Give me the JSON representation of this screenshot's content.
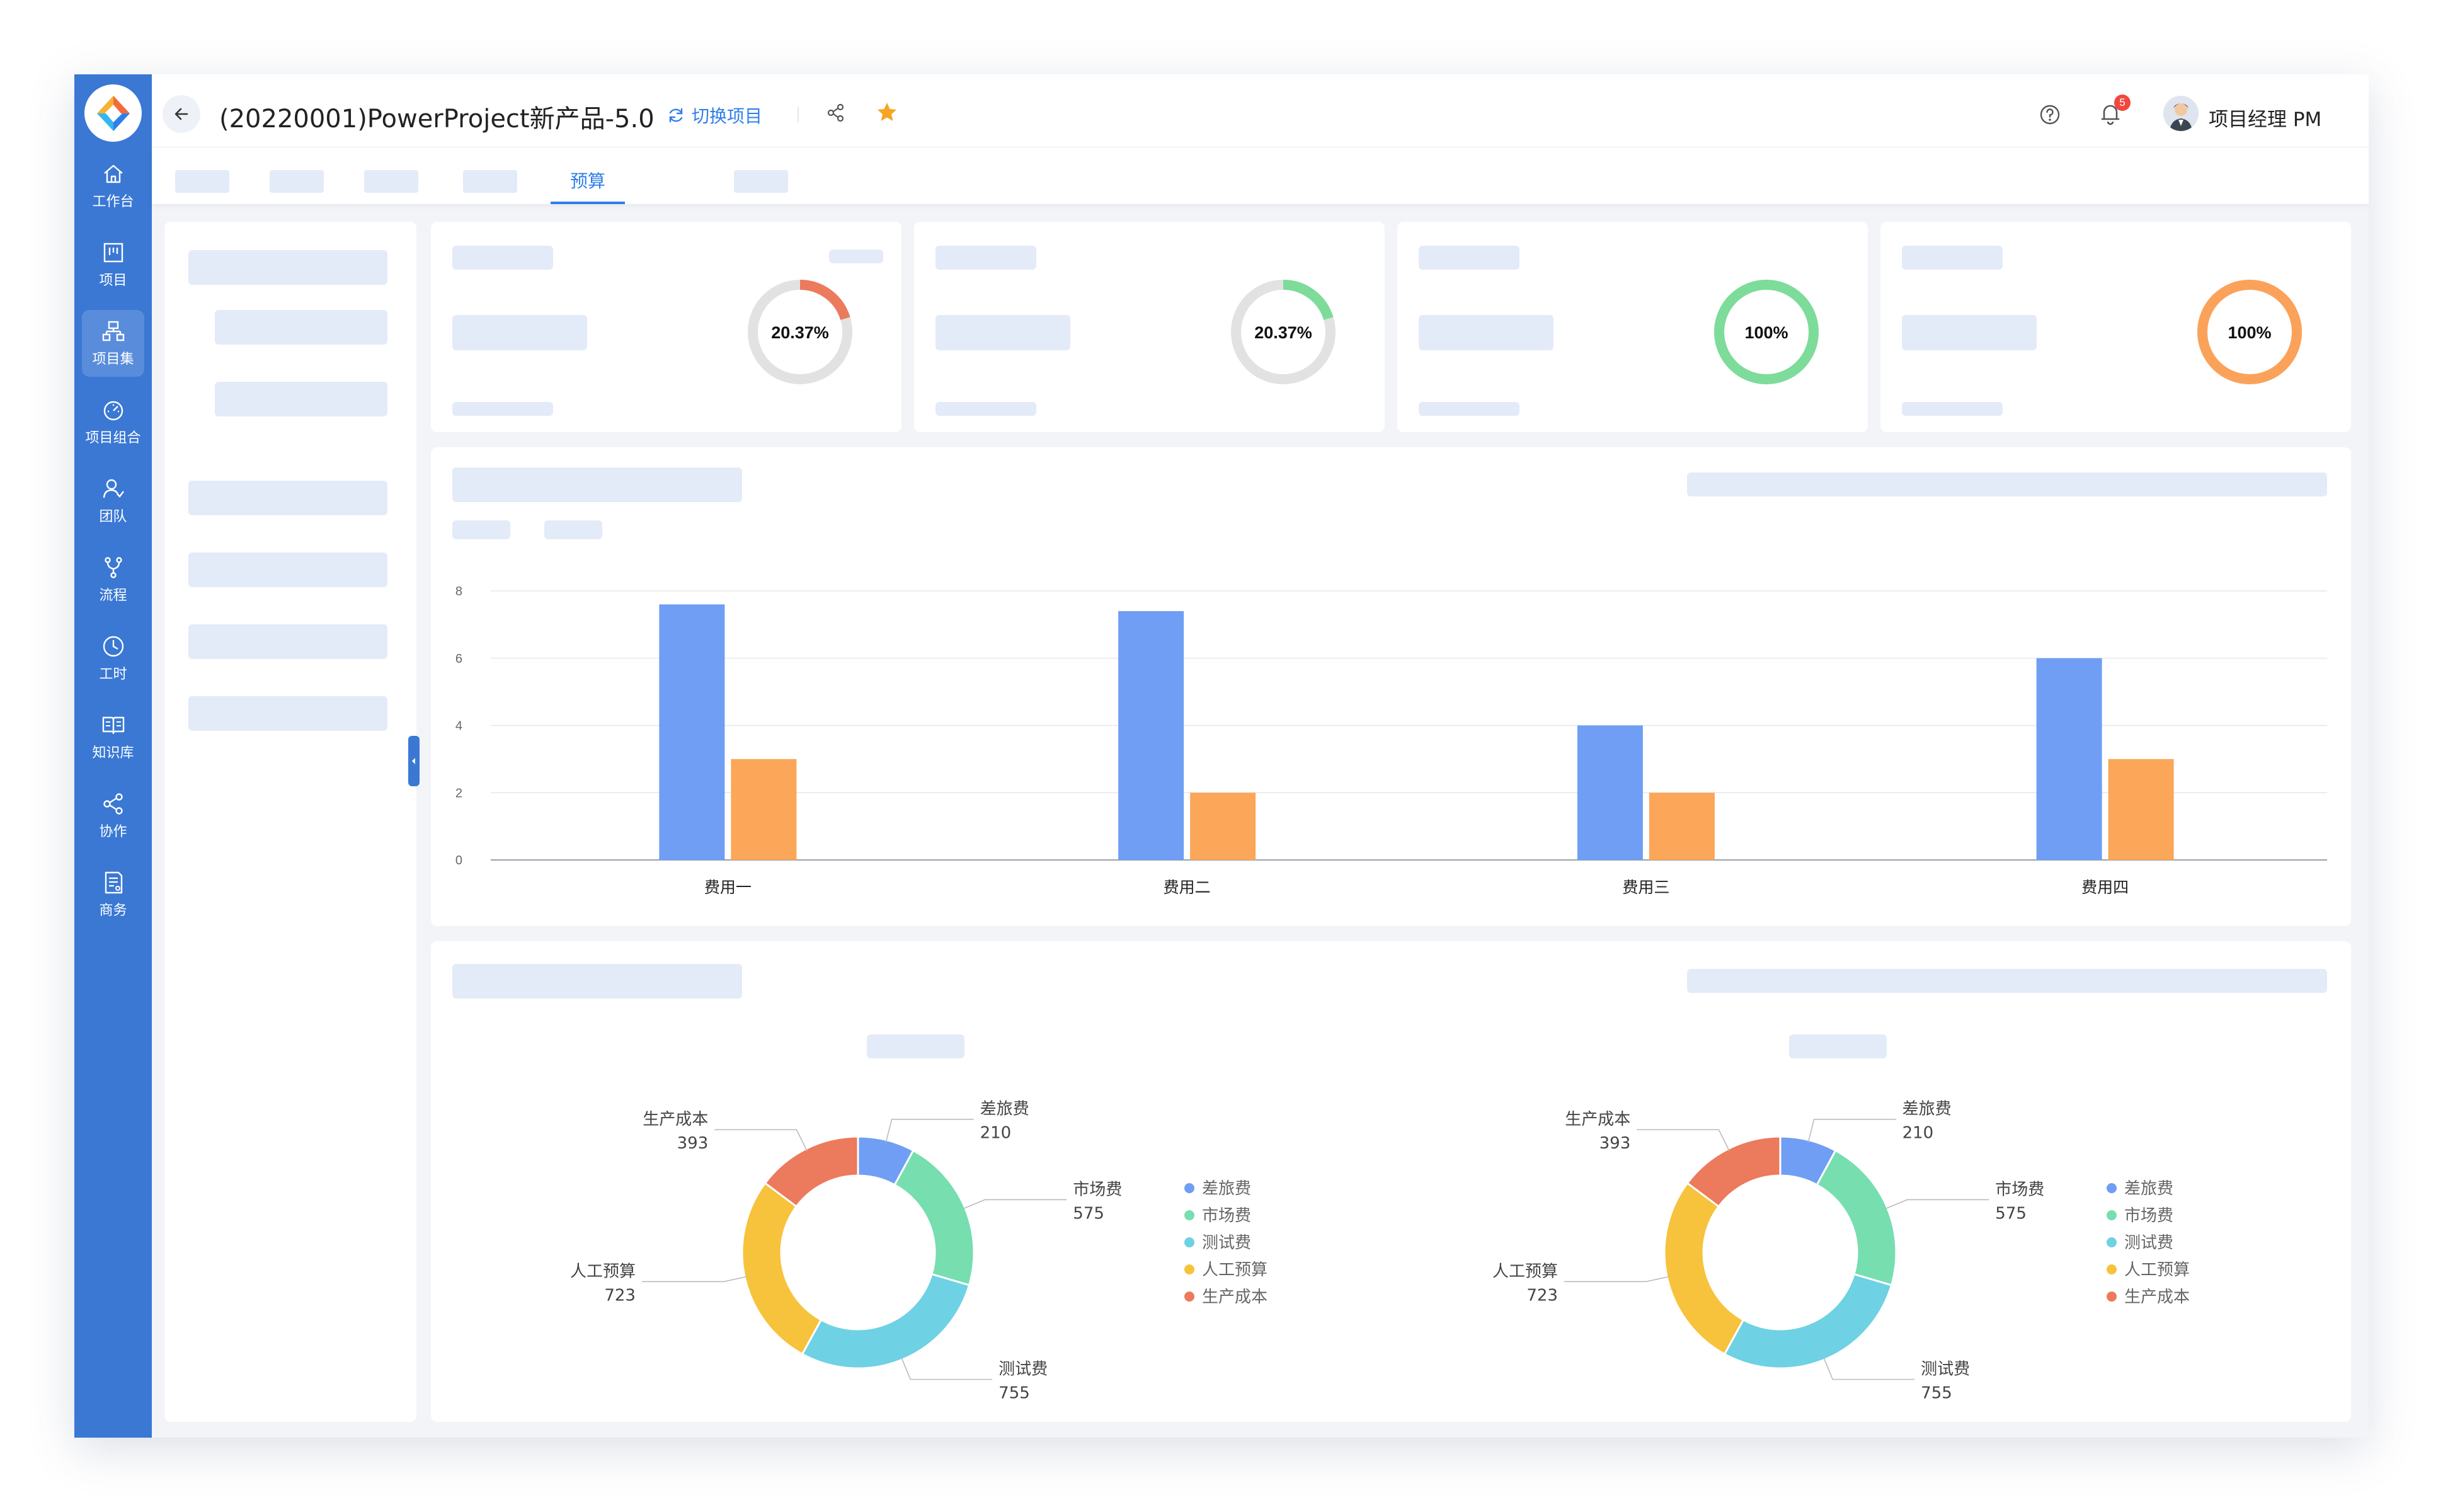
{
  "app": {
    "project_title": "(20220001)PowerProject新产品-5.0",
    "switch_label": "切换项目",
    "notification_count": "5",
    "user_name": "项目经理 PM"
  },
  "sidebar": {
    "items": [
      {
        "label": "工作台",
        "icon": "home-icon"
      },
      {
        "label": "项目",
        "icon": "kanban-icon"
      },
      {
        "label": "项目集",
        "icon": "hierarchy-icon",
        "active": true
      },
      {
        "label": "项目组合",
        "icon": "dashboard-icon"
      },
      {
        "label": "团队",
        "icon": "team-icon"
      },
      {
        "label": "流程",
        "icon": "flow-icon"
      },
      {
        "label": "工时",
        "icon": "clock-icon"
      },
      {
        "label": "知识库",
        "icon": "book-icon"
      },
      {
        "label": "协作",
        "icon": "share-icon"
      },
      {
        "label": "商务",
        "icon": "document-icon"
      }
    ]
  },
  "tabs": {
    "active_label": "预算"
  },
  "gauges": [
    {
      "label": "20.37%",
      "value": 0.2037,
      "color": "#ec7a5c"
    },
    {
      "label": "20.37%",
      "value": 0.2037,
      "color": "#7ddc9a"
    },
    {
      "label": "100%",
      "value": 1.0,
      "color": "#7ddc9a"
    },
    {
      "label": "100%",
      "value": 1.0,
      "color": "#fba25a"
    }
  ],
  "colors": {
    "accent": "#2f7fe8",
    "sidebar": "#3a78d4",
    "placeholder": "#e3ebf8"
  },
  "chart_data": [
    {
      "type": "bar",
      "categories": [
        "费用一",
        "费用二",
        "费用三",
        "费用四"
      ],
      "series": [
        {
          "values": [
            7.6,
            7.4,
            4,
            6
          ],
          "color": "#6f9ef4"
        },
        {
          "values": [
            3,
            2,
            2,
            3
          ],
          "color": "#fba658"
        }
      ],
      "y_ticks": [
        "0",
        "2",
        "4",
        "6",
        "8"
      ],
      "ylim": [
        0,
        8
      ],
      "grid": true
    },
    {
      "type": "pie",
      "variant": "donut",
      "labels": [
        "差旅费",
        "市场费",
        "测试费",
        "人工预算",
        "生产成本"
      ],
      "values": [
        210,
        575,
        755,
        723,
        393
      ],
      "colors": [
        "#6f9ef4",
        "#76deaf",
        "#6ed1e4",
        "#f7c33c",
        "#ec7a5c"
      ],
      "legend": "right"
    },
    {
      "type": "pie",
      "variant": "donut",
      "labels": [
        "差旅费",
        "市场费",
        "测试费",
        "人工预算",
        "生产成本"
      ],
      "values": [
        210,
        575,
        755,
        723,
        393
      ],
      "colors": [
        "#6f9ef4",
        "#76deaf",
        "#6ed1e4",
        "#f7c33c",
        "#ec7a5c"
      ],
      "legend": "right"
    }
  ]
}
